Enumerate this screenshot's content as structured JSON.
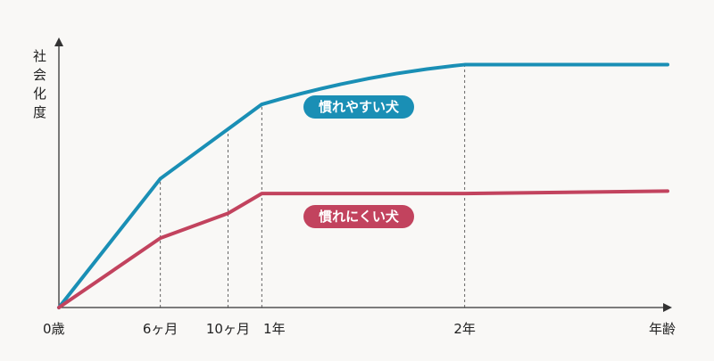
{
  "chart_data": {
    "type": "line",
    "title": "",
    "ylabel": "社会化度",
    "xlabel": "年齢",
    "x_ticks": [
      {
        "x": 0,
        "label": "0歳"
      },
      {
        "x": 6,
        "label": "6ヶ月"
      },
      {
        "x": 10,
        "label": "10ヶ月"
      },
      {
        "x": 12,
        "label": "1年"
      },
      {
        "x": 24,
        "label": "2年"
      },
      {
        "x": 36,
        "label": "年齢"
      }
    ],
    "xlim": [
      0,
      36
    ],
    "ylim": [
      0,
      100
    ],
    "guide_lines_x": [
      6,
      10,
      12,
      24
    ],
    "grid": false,
    "series": [
      {
        "name": "慣れやすい犬",
        "color": "#1a8fb5",
        "label_color": "#1a8fb5",
        "points": [
          [
            0,
            0
          ],
          [
            6,
            52
          ],
          [
            10,
            72
          ],
          [
            12,
            82
          ],
          [
            18,
            94
          ],
          [
            24,
            98
          ],
          [
            36,
            98
          ]
        ]
      },
      {
        "name": "慣れにくい犬",
        "color": "#c2435e",
        "label_color": "#c2435e",
        "points": [
          [
            0,
            0
          ],
          [
            6,
            28
          ],
          [
            10,
            38
          ],
          [
            12,
            46
          ],
          [
            24,
            46
          ],
          [
            36,
            47
          ]
        ]
      }
    ]
  }
}
